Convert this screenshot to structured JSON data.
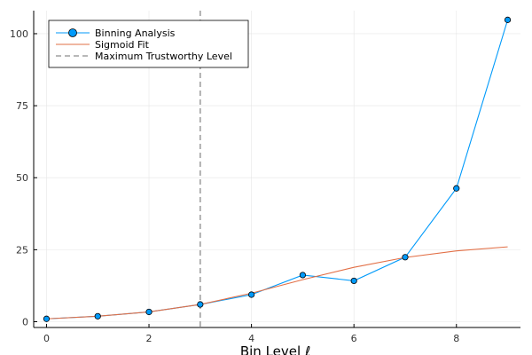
{
  "chart_data": {
    "type": "line",
    "title": "",
    "xlabel": "Bin Level ℓ",
    "ylabel": "",
    "xlim": [
      -0.25,
      9.25
    ],
    "ylim": [
      -2,
      108
    ],
    "xticks": [
      0,
      2,
      4,
      6,
      8
    ],
    "yticks": [
      0,
      25,
      50,
      75,
      100
    ],
    "grid": true,
    "legend_position": "top-left",
    "series": [
      {
        "name": "Binning Analysis",
        "kind": "line-markers",
        "color": "#009AFA",
        "x": [
          0,
          1,
          2,
          3,
          4,
          5,
          6,
          7,
          8,
          9
        ],
        "y": [
          1.0,
          1.9,
          3.4,
          6.0,
          9.4,
          16.2,
          14.2,
          22.4,
          46.3,
          104.8
        ]
      },
      {
        "name": "Sigmoid Fit",
        "kind": "line",
        "color": "#E26F46",
        "x": [
          0,
          1,
          2,
          3,
          4,
          5,
          6,
          7,
          8,
          9
        ],
        "y": [
          1.0,
          1.9,
          3.4,
          6.0,
          9.9,
          14.6,
          18.9,
          22.3,
          24.6,
          26.0
        ]
      },
      {
        "name": "Maximum Trustworthy Level",
        "kind": "vline",
        "color": "#A0A0A0",
        "x": 3
      }
    ]
  }
}
